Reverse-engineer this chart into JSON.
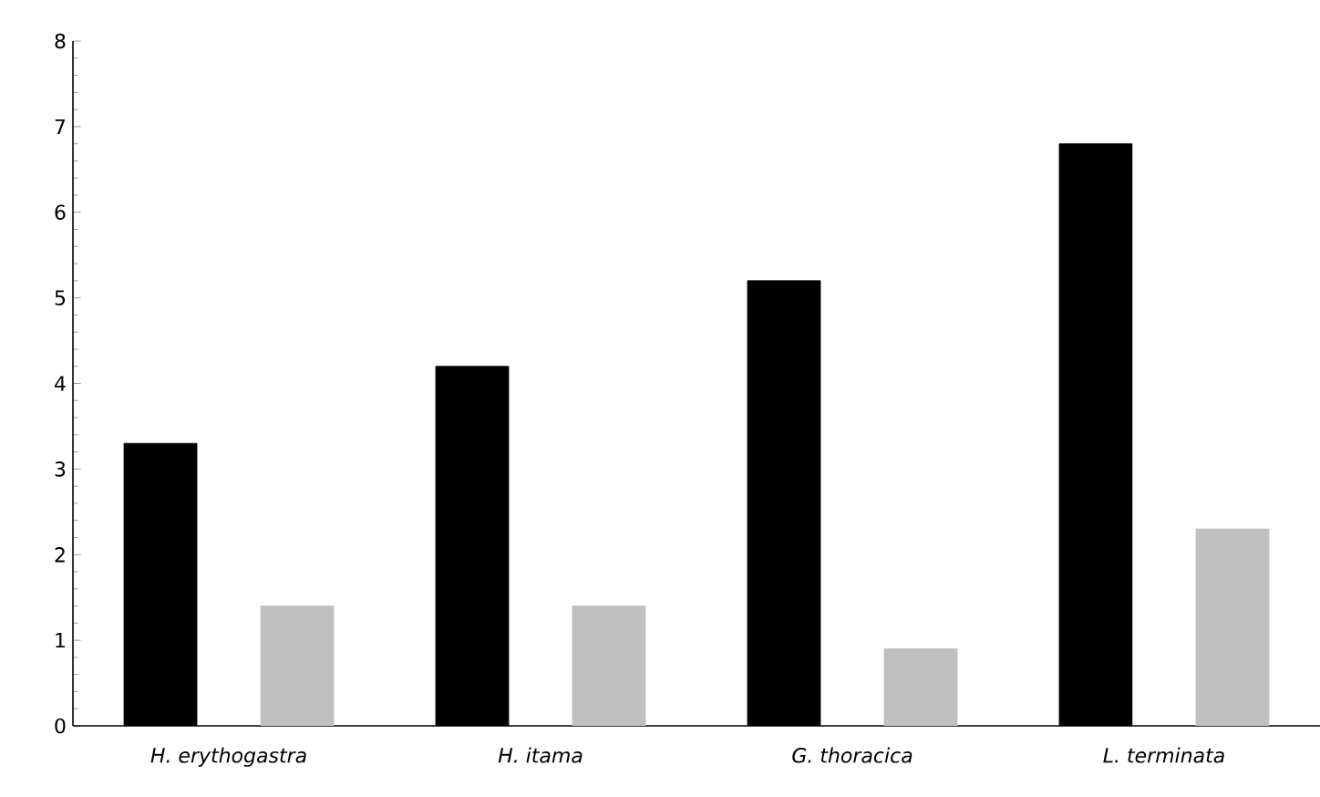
{
  "chart_data": {
    "type": "bar",
    "categories": [
      "H. erythogastra",
      "H. itama",
      "G. thoracica",
      "L. terminata"
    ],
    "series": [
      {
        "color": "#000000",
        "values": [
          3.3,
          4.2,
          5.2,
          6.8
        ]
      },
      {
        "color": "#c0c0c0",
        "values": [
          1.4,
          1.4,
          0.9,
          2.3
        ]
      }
    ],
    "ylim": [
      0,
      8
    ],
    "yticks": [
      0,
      1,
      2,
      3,
      4,
      5,
      6,
      7,
      8
    ],
    "grid": false
  }
}
